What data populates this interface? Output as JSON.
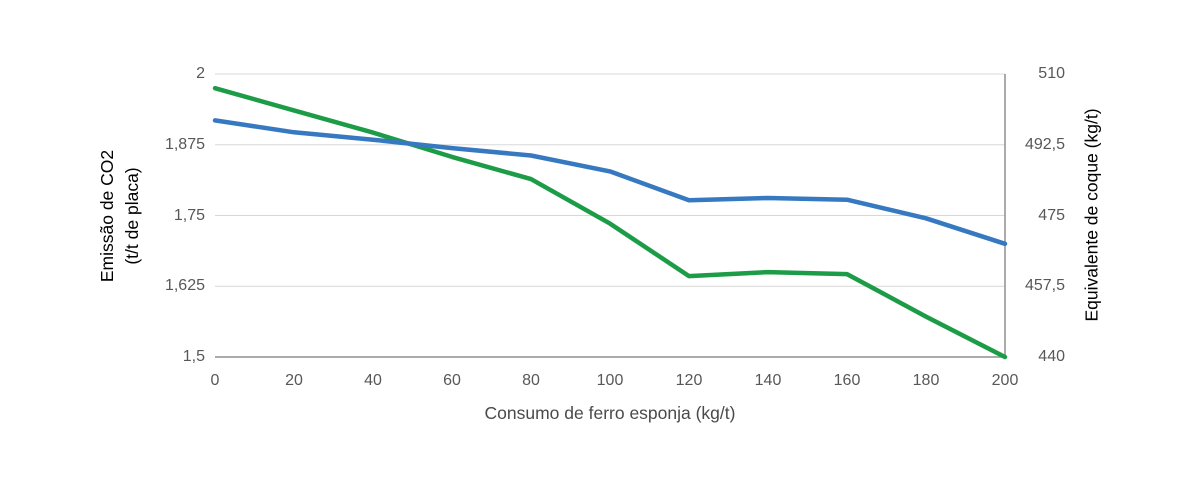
{
  "chart_data": {
    "type": "line",
    "x": [
      0,
      20,
      40,
      60,
      80,
      100,
      120,
      140,
      160,
      180,
      200
    ],
    "x_tick_labels": [
      "0",
      "20",
      "40",
      "60",
      "80",
      "100",
      "120",
      "140",
      "160",
      "180",
      "200"
    ],
    "xlabel": "Consumo de ferro esponja (kg/t)",
    "left_axis": {
      "title_line1": "Emissão de CO2",
      "title_line2": "(t/t de placa)",
      "color": "#3679C0",
      "tick_labels": [
        "2",
        "1,875",
        "1,75",
        "1,625",
        "1,5"
      ],
      "tick_values": [
        2,
        1.875,
        1.75,
        1.625,
        1.5
      ],
      "range": [
        1.5,
        2
      ]
    },
    "right_axis": {
      "title": "Equivalente de coque (kg/t)",
      "color": "#1C9C47",
      "tick_labels": [
        "510",
        "492,5",
        "475",
        "457,5",
        "440"
      ],
      "tick_values": [
        510,
        492.5,
        475,
        457.5,
        440
      ],
      "range": [
        440,
        510
      ]
    },
    "series": [
      {
        "name": "Equivalente de coque (kg/t)",
        "axis": "right",
        "color": "#1C9C47",
        "values": [
          506.5,
          501,
          495.5,
          489.5,
          484,
          473,
          460,
          461,
          460.5,
          450,
          440
        ]
      },
      {
        "name": "Emissão de CO2 (t/t de placa)",
        "axis": "left",
        "color": "#3679C0",
        "values": [
          1.918,
          1.897,
          1.884,
          1.869,
          1.856,
          1.828,
          1.777,
          1.781,
          1.778,
          1.745,
          1.7
        ]
      }
    ],
    "grid": true,
    "grid_color": "#d8d8d8",
    "axis_line_color": "#8f8f8f",
    "tick_label_color": "#58585a",
    "legend_position": "none"
  }
}
